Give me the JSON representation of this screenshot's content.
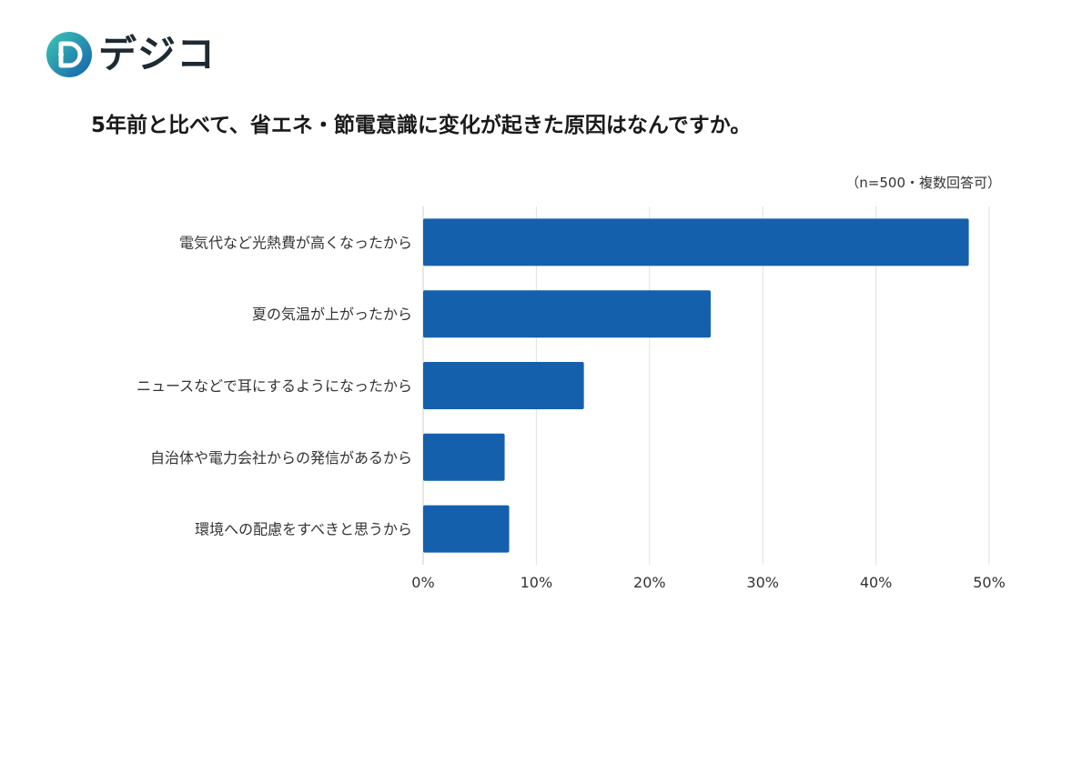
{
  "brand": {
    "name": "デジコ",
    "colors": {
      "primary": "#1a7fb0",
      "accent": "#3cc8b4",
      "dark": "#1e2a33"
    }
  },
  "note": "（n=500・複数回答可）",
  "chart_data": {
    "type": "bar",
    "orientation": "horizontal",
    "title": "5年前と比べて、省エネ・節電意識に変化が起きた原因はなんですか。",
    "categories": [
      "電気代など光熱費が高くなったから",
      "夏の気温が上がったから",
      "ニュースなどで耳にするようになったから",
      "自治体や電力会社からの発信があるから",
      "環境への配慮をすべきと思うから"
    ],
    "values": [
      48.2,
      25.4,
      14.2,
      7.2,
      7.6
    ],
    "unit": "%",
    "xlim": [
      0,
      50
    ],
    "xticks": [
      "0%",
      "10%",
      "20%",
      "30%",
      "40%",
      "50%"
    ],
    "grid": true,
    "bar_color": "#1560ad"
  }
}
